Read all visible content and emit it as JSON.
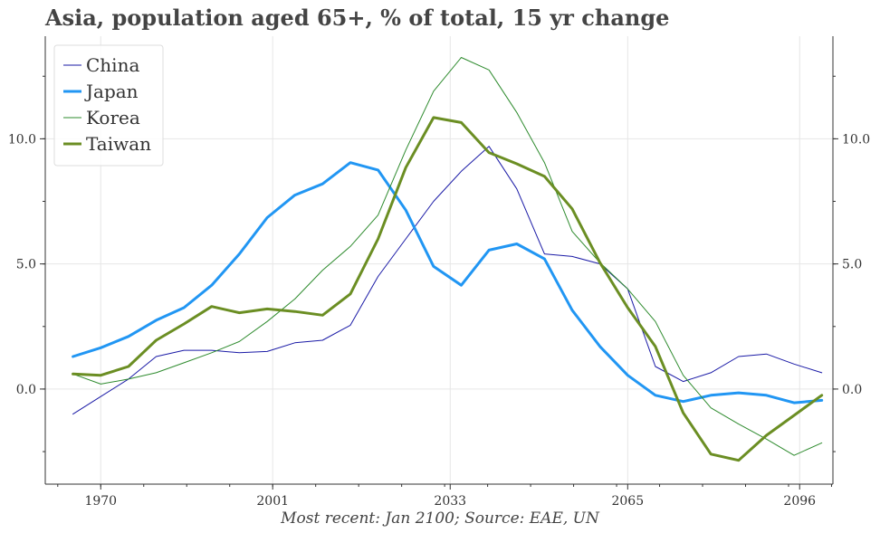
{
  "chart_data": {
    "type": "line",
    "title": "Asia, population aged 65+, % of total, 15 yr change",
    "caption": "Most recent: Jan 2100; Source: EAE, UN",
    "xlabel": "",
    "ylabel": "",
    "x_ticks": [
      1970,
      2001,
      2033,
      2065,
      2096
    ],
    "y_ticks": [
      0.0,
      5.0,
      10.0
    ],
    "y_tick_labels": [
      "0.0",
      "5.0",
      "10.0"
    ],
    "xlim": [
      1960,
      2102
    ],
    "ylim": [
      -3.8,
      14.1
    ],
    "grid": true,
    "legend": "top-left",
    "x": [
      1965,
      1970,
      1975,
      1980,
      1985,
      1990,
      1995,
      2000,
      2005,
      2010,
      2015,
      2020,
      2025,
      2030,
      2035,
      2040,
      2045,
      2050,
      2055,
      2060,
      2065,
      2070,
      2075,
      2080,
      2085,
      2090,
      2095,
      2100
    ],
    "series": [
      {
        "name": "China",
        "color": "#1a1aa6",
        "width": 1,
        "values": [
          -1.0,
          -0.3,
          0.4,
          1.3,
          1.55,
          1.55,
          1.45,
          1.5,
          1.85,
          1.95,
          2.55,
          4.5,
          6.0,
          7.5,
          8.7,
          9.7,
          8.0,
          5.4,
          5.3,
          5.0,
          4.0,
          0.9,
          0.3,
          0.65,
          1.3,
          1.4,
          1.0,
          0.65
        ]
      },
      {
        "name": "Japan",
        "color": "#2196f3",
        "width": 3,
        "values": [
          1.3,
          1.65,
          2.1,
          2.75,
          3.25,
          4.15,
          5.4,
          6.85,
          7.75,
          8.2,
          9.05,
          8.75,
          7.15,
          4.9,
          4.15,
          5.55,
          5.8,
          5.2,
          3.15,
          1.7,
          0.55,
          -0.25,
          -0.5,
          -0.25,
          -0.15,
          -0.25,
          -0.55,
          -0.45
        ]
      },
      {
        "name": "Korea",
        "color": "#2e8b2e",
        "width": 1,
        "values": [
          0.6,
          0.2,
          0.4,
          0.65,
          1.05,
          1.45,
          1.9,
          2.7,
          3.6,
          4.75,
          5.7,
          6.95,
          9.55,
          11.9,
          13.25,
          12.75,
          11.05,
          9.05,
          6.3,
          5.05,
          4.0,
          2.7,
          0.55,
          -0.75,
          -1.4,
          -2.0,
          -2.65,
          -2.15
        ]
      },
      {
        "name": "Taiwan",
        "color": "#6b8e23",
        "width": 3,
        "values": [
          0.6,
          0.55,
          0.9,
          1.95,
          2.6,
          3.3,
          3.05,
          3.2,
          3.1,
          2.95,
          3.8,
          6.0,
          8.85,
          10.85,
          10.65,
          9.45,
          9.0,
          8.5,
          7.2,
          5.05,
          3.25,
          1.7,
          -0.95,
          -2.6,
          -2.85,
          -1.85,
          -1.05,
          -0.25
        ]
      }
    ]
  }
}
